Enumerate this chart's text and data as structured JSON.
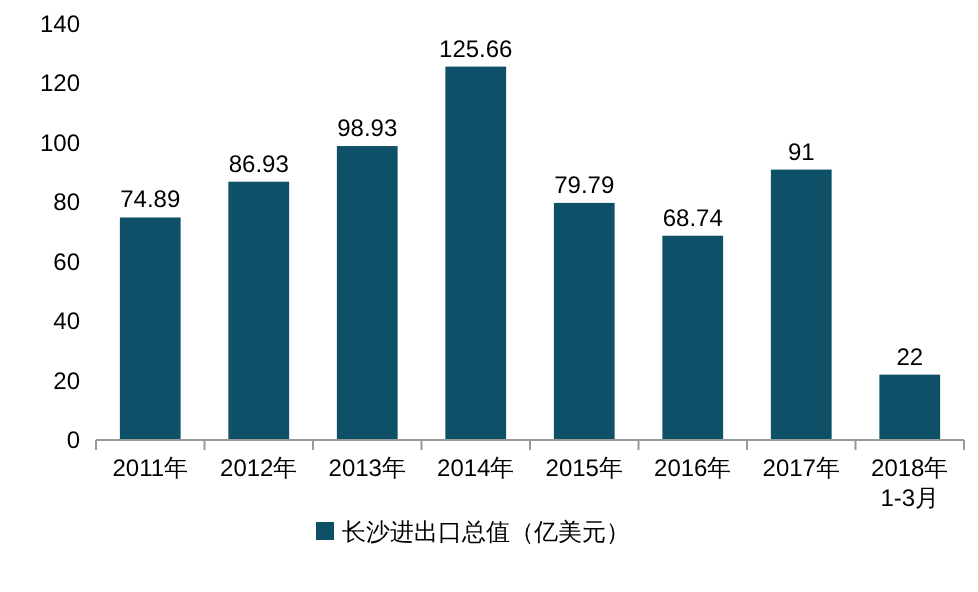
{
  "chart_data": {
    "type": "bar",
    "categories": [
      "2011年",
      "2012年",
      "2013年",
      "2014年",
      "2015年",
      "2016年",
      "2017年",
      "2018年\n1-3月"
    ],
    "series": [
      {
        "name": "长沙进出口总值（亿美元）",
        "color": "#0e5068",
        "values": [
          74.89,
          86.93,
          98.93,
          125.66,
          79.79,
          68.74,
          91,
          22
        ]
      }
    ],
    "ylim": [
      0,
      140
    ],
    "yticks": [
      0,
      20,
      40,
      60,
      80,
      100,
      120,
      140
    ],
    "data_labels": true,
    "legend": "bottom",
    "grid": false
  }
}
